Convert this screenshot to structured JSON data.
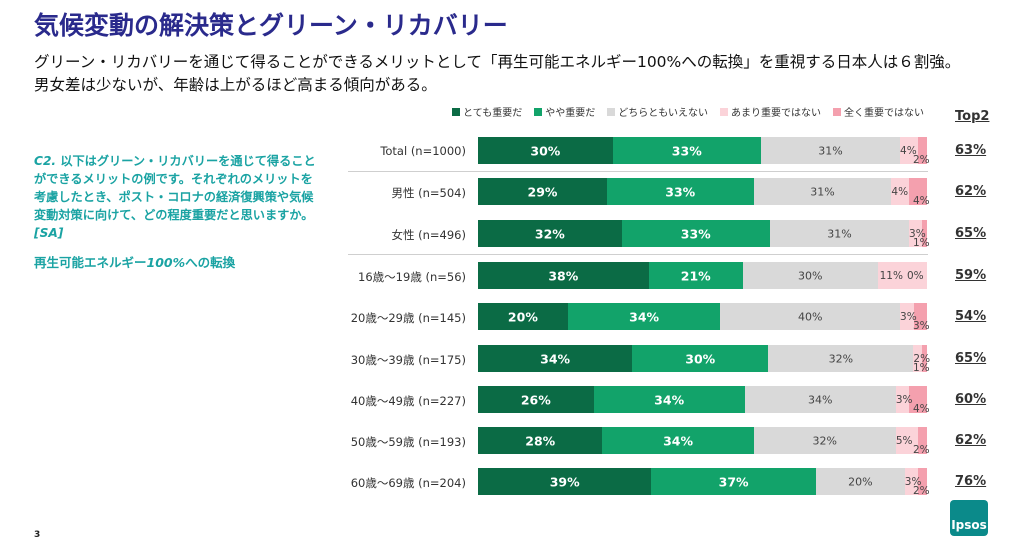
{
  "header": {
    "title": "気候変動の解決策とグリーン・リカバリー",
    "subtitle_line1": "グリーン・リカバリーを通じて得ることができるメリットとして「再生可能エネルギー100%への転換」を重視する日本人は６割強。",
    "subtitle_line2": "男女差は少ないが、年齢は上がるほど高まる傾向がある。"
  },
  "question": {
    "id": "C2.",
    "text": "以下はグリーン・リカバリーを通じて得ることができるメリットの例です。それぞれのメリットを考慮したとき、ポスト・コロナの経済復興策や気候変動対策に向けて、どの程度重要だと思いますか。",
    "tag": "[SA]",
    "option_prefix": "再生可能エネルギー",
    "option_highlight": "100%",
    "option_suffix": "への転換"
  },
  "top2_header": "Top2",
  "page_number": "3",
  "logo_text": "Ipsos",
  "chart_data": {
    "type": "bar",
    "orientation": "horizontal-stacked-100",
    "legend_position": "top",
    "series": [
      {
        "name": "とても重要だ",
        "color": "#0b6b45"
      },
      {
        "name": "やや重要だ",
        "color": "#12a36a"
      },
      {
        "name": "どちらともいえない",
        "color": "#d9d9d9"
      },
      {
        "name": "あまり重要ではない",
        "color": "#fbd3d9"
      },
      {
        "name": "全く重要ではない",
        "color": "#f4a0ae"
      }
    ],
    "categories": [
      "Total (n=1000)",
      "男性 (n=504)",
      "女性 (n=496)",
      "16歳〜19歳 (n=56)",
      "20歳〜29歳 (n=145)",
      "30歳〜39歳 (n=175)",
      "40歳〜49歳 (n=227)",
      "50歳〜59歳 (n=193)",
      "60歳〜69歳 (n=204)"
    ],
    "values": [
      [
        30,
        33,
        31,
        4,
        2
      ],
      [
        29,
        33,
        31,
        4,
        4
      ],
      [
        32,
        33,
        31,
        3,
        1
      ],
      [
        38,
        21,
        30,
        11,
        0
      ],
      [
        20,
        34,
        40,
        3,
        3
      ],
      [
        34,
        30,
        32,
        2,
        1
      ],
      [
        26,
        34,
        34,
        3,
        4
      ],
      [
        28,
        34,
        32,
        5,
        2
      ],
      [
        39,
        37,
        20,
        3,
        2
      ]
    ],
    "top2": [
      "63%",
      "62%",
      "65%",
      "59%",
      "54%",
      "65%",
      "60%",
      "62%",
      "76%"
    ],
    "value_suffix": "%"
  }
}
